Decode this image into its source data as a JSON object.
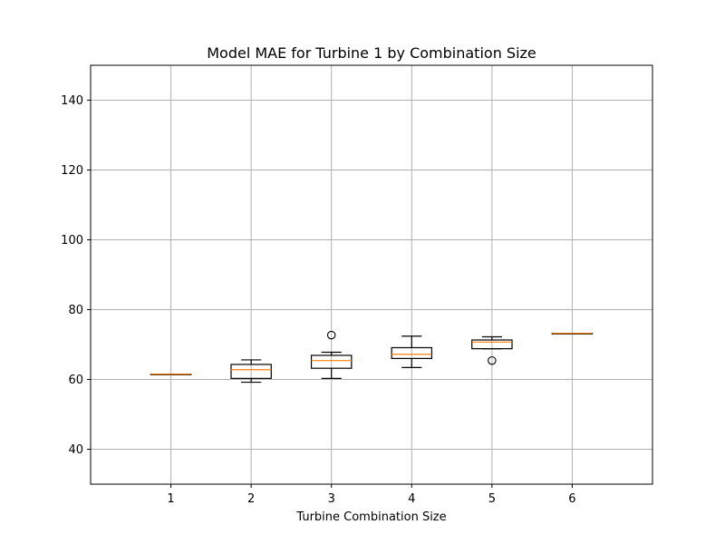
{
  "chart_data": {
    "type": "box",
    "title": "Model MAE for Turbine 1 by Combination Size",
    "xlabel": "Turbine Combination Size",
    "ylabel": "",
    "ylim": [
      30,
      150
    ],
    "xlim": [
      0,
      7
    ],
    "yticks": [
      40,
      60,
      80,
      100,
      120,
      140
    ],
    "categories": [
      "1",
      "2",
      "3",
      "4",
      "5",
      "6"
    ],
    "grid": true,
    "boxes": [
      {
        "category": "1",
        "whisker_low": 61.5,
        "q1": 61.5,
        "median": 61.5,
        "q3": 61.5,
        "whisker_high": 61.5,
        "outliers": []
      },
      {
        "category": "2",
        "whisker_low": 59.2,
        "q1": 60.3,
        "median": 62.8,
        "q3": 64.3,
        "whisker_high": 65.6,
        "outliers": []
      },
      {
        "category": "3",
        "whisker_low": 60.3,
        "q1": 63.2,
        "median": 65.4,
        "q3": 66.9,
        "whisker_high": 67.8,
        "outliers": [
          72.7
        ]
      },
      {
        "category": "4",
        "whisker_low": 63.4,
        "q1": 66.0,
        "median": 67.2,
        "q3": 69.1,
        "whisker_high": 72.4,
        "outliers": []
      },
      {
        "category": "5",
        "whisker_low": 68.8,
        "q1": 68.8,
        "median": 70.7,
        "q3": 71.3,
        "whisker_high": 72.2,
        "outliers": [
          65.4
        ]
      },
      {
        "category": "6",
        "whisker_low": 73.2,
        "q1": 73.2,
        "median": 73.2,
        "q3": 73.2,
        "whisker_high": 73.2,
        "outliers": []
      }
    ],
    "colors": {
      "box": "#000000",
      "median": "#ff7f0e",
      "grid": "#b0b0b0"
    }
  }
}
